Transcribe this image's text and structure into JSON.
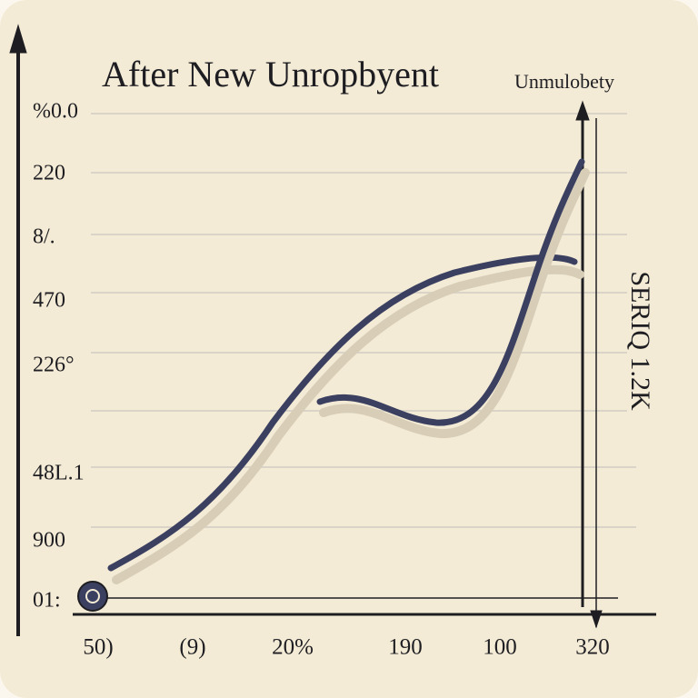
{
  "title": "After New Unropbyent",
  "corner_label": "Unmulobety",
  "side_label": "SERIQ 1.2K",
  "y_labels": [
    "%0.0",
    "220",
    "8/.",
    "470",
    "226°",
    "48L.1",
    "900",
    "01:"
  ],
  "x_labels": [
    "50)",
    "(9)",
    "20%",
    "190",
    "100",
    "320"
  ]
}
